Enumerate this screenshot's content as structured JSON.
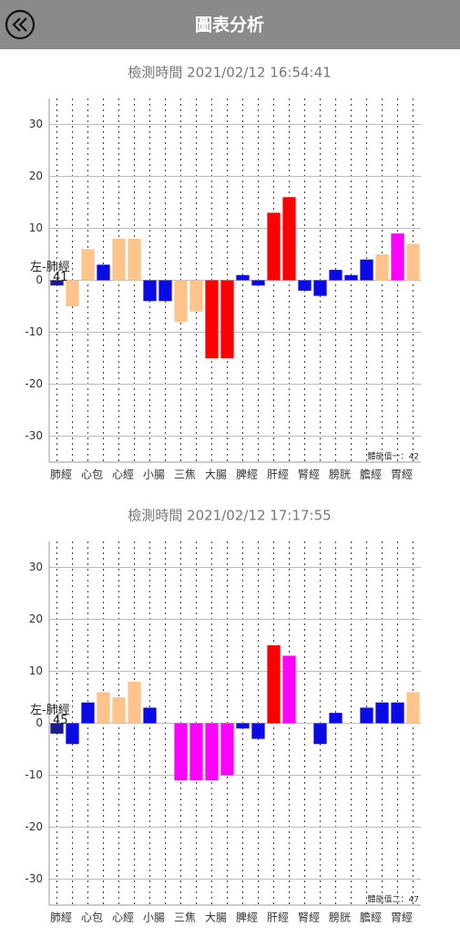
{
  "header": {
    "title": "圖表分析"
  },
  "chart_data": [
    {
      "type": "bar",
      "title": "檢測時間 2021/02/12 16:54:41",
      "categories": [
        "肺經",
        null,
        "心包",
        null,
        "心經",
        null,
        "小腸",
        null,
        "三焦",
        null,
        "大腸",
        null,
        "脾經",
        null,
        "肝經",
        null,
        "腎經",
        null,
        "膀胱",
        null,
        "膽經",
        null,
        "胃經",
        null
      ],
      "values": [
        -1,
        -5,
        6,
        3,
        8,
        8,
        -4,
        -4,
        -8,
        -6,
        -15,
        -15,
        1,
        -1,
        13,
        16,
        -2,
        -3,
        2,
        1,
        4,
        5,
        9,
        7
      ],
      "colors": [
        "#1c1c8e",
        "#ffc48c",
        "#ffc48c",
        "#0a0ae6",
        "#ffc48c",
        "#ffc48c",
        "#0a0ae6",
        "#0a0ae6",
        "#ffc48c",
        "#ffc48c",
        "#ff0000",
        "#ff0000",
        "#0a0ae6",
        "#0a0ae6",
        "#ff0000",
        "#ff0000",
        "#0a0ae6",
        "#0a0ae6",
        "#0a0ae6",
        "#0a0ae6",
        "#0a0ae6",
        "#ffc48c",
        "#ff00ff",
        "#ffc48c"
      ],
      "ylim": [
        -35,
        35
      ],
      "yticks": [
        -30,
        -20,
        -10,
        0,
        10,
        20,
        30
      ],
      "grid": true,
      "selected": {
        "name": "左-肺經",
        "value": 41
      },
      "footnote": "體能值一：42"
    },
    {
      "type": "bar",
      "title": "檢測時間 2021/02/12 17:17:55",
      "categories": [
        "肺經",
        null,
        "心包",
        null,
        "心經",
        null,
        "小腸",
        null,
        "三焦",
        null,
        "大腸",
        null,
        "脾經",
        null,
        "肝經",
        null,
        "腎經",
        null,
        "膀胱",
        null,
        "膽經",
        null,
        "胃經",
        null
      ],
      "values": [
        -2,
        -4,
        4,
        6,
        5,
        8,
        3,
        0,
        -11,
        -11,
        -11,
        -10,
        -1,
        -3,
        15,
        13,
        0,
        -4,
        2,
        0,
        3,
        4,
        4,
        6
      ],
      "colors": [
        "#1c1c8e",
        "#0a0ae6",
        "#0a0ae6",
        "#ffc48c",
        "#ffc48c",
        "#ffc48c",
        "#0a0ae6",
        "#0a0ae6",
        "#ff00ff",
        "#ff00ff",
        "#ff00ff",
        "#ff00ff",
        "#0a0ae6",
        "#0a0ae6",
        "#ff0000",
        "#ff00ff",
        "#0a0ae6",
        "#0a0ae6",
        "#0a0ae6",
        "#0a0ae6",
        "#0a0ae6",
        "#0a0ae6",
        "#0a0ae6",
        "#ffc48c"
      ],
      "ylim": [
        -35,
        35
      ],
      "yticks": [
        -30,
        -20,
        -10,
        0,
        10,
        20,
        30
      ],
      "grid": true,
      "selected": {
        "name": "左-肺經",
        "value": 45
      },
      "footnote": "體能值二：47"
    }
  ]
}
